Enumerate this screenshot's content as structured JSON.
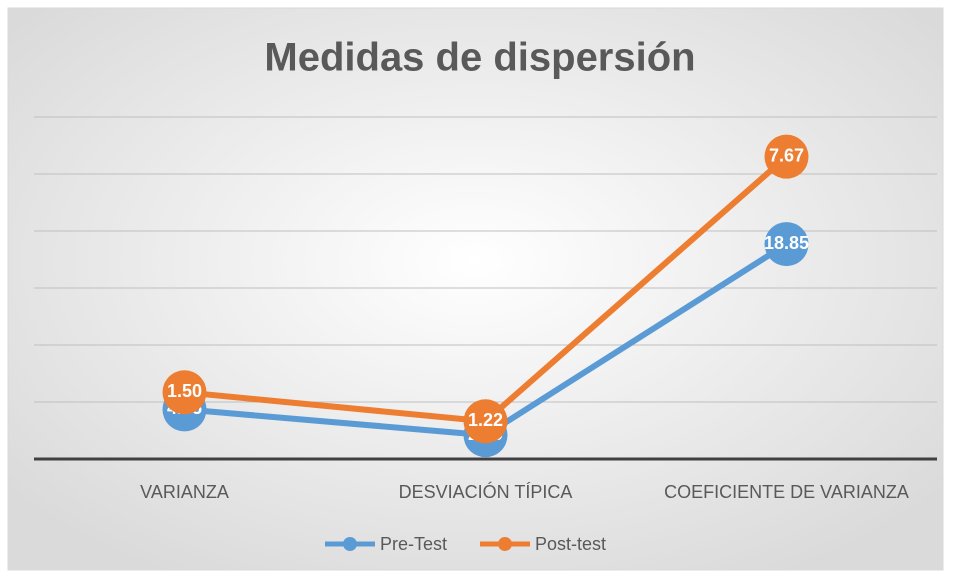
{
  "chart_data": {
    "type": "line",
    "stacked": true,
    "title": "Medidas de dispersión",
    "categories": [
      "VARIANZA",
      "DESVIACIÓN TÍPICA",
      "COEFICIENTE DE VARIANZA"
    ],
    "series": [
      {
        "name": "Pre-Test",
        "color": "#5b9bd5",
        "values": [
          4.35,
          2.09,
          18.85
        ]
      },
      {
        "name": "Post-test",
        "color": "#ed7d31",
        "values": [
          1.5,
          1.22,
          7.67
        ],
        "value_labels": [
          "1.50",
          "1.22",
          "7.67"
        ]
      }
    ],
    "ylim": [
      0,
      30
    ],
    "yticks": [
      0,
      5,
      10,
      15,
      20,
      25,
      30
    ],
    "grid": true,
    "legend": "bottom"
  }
}
